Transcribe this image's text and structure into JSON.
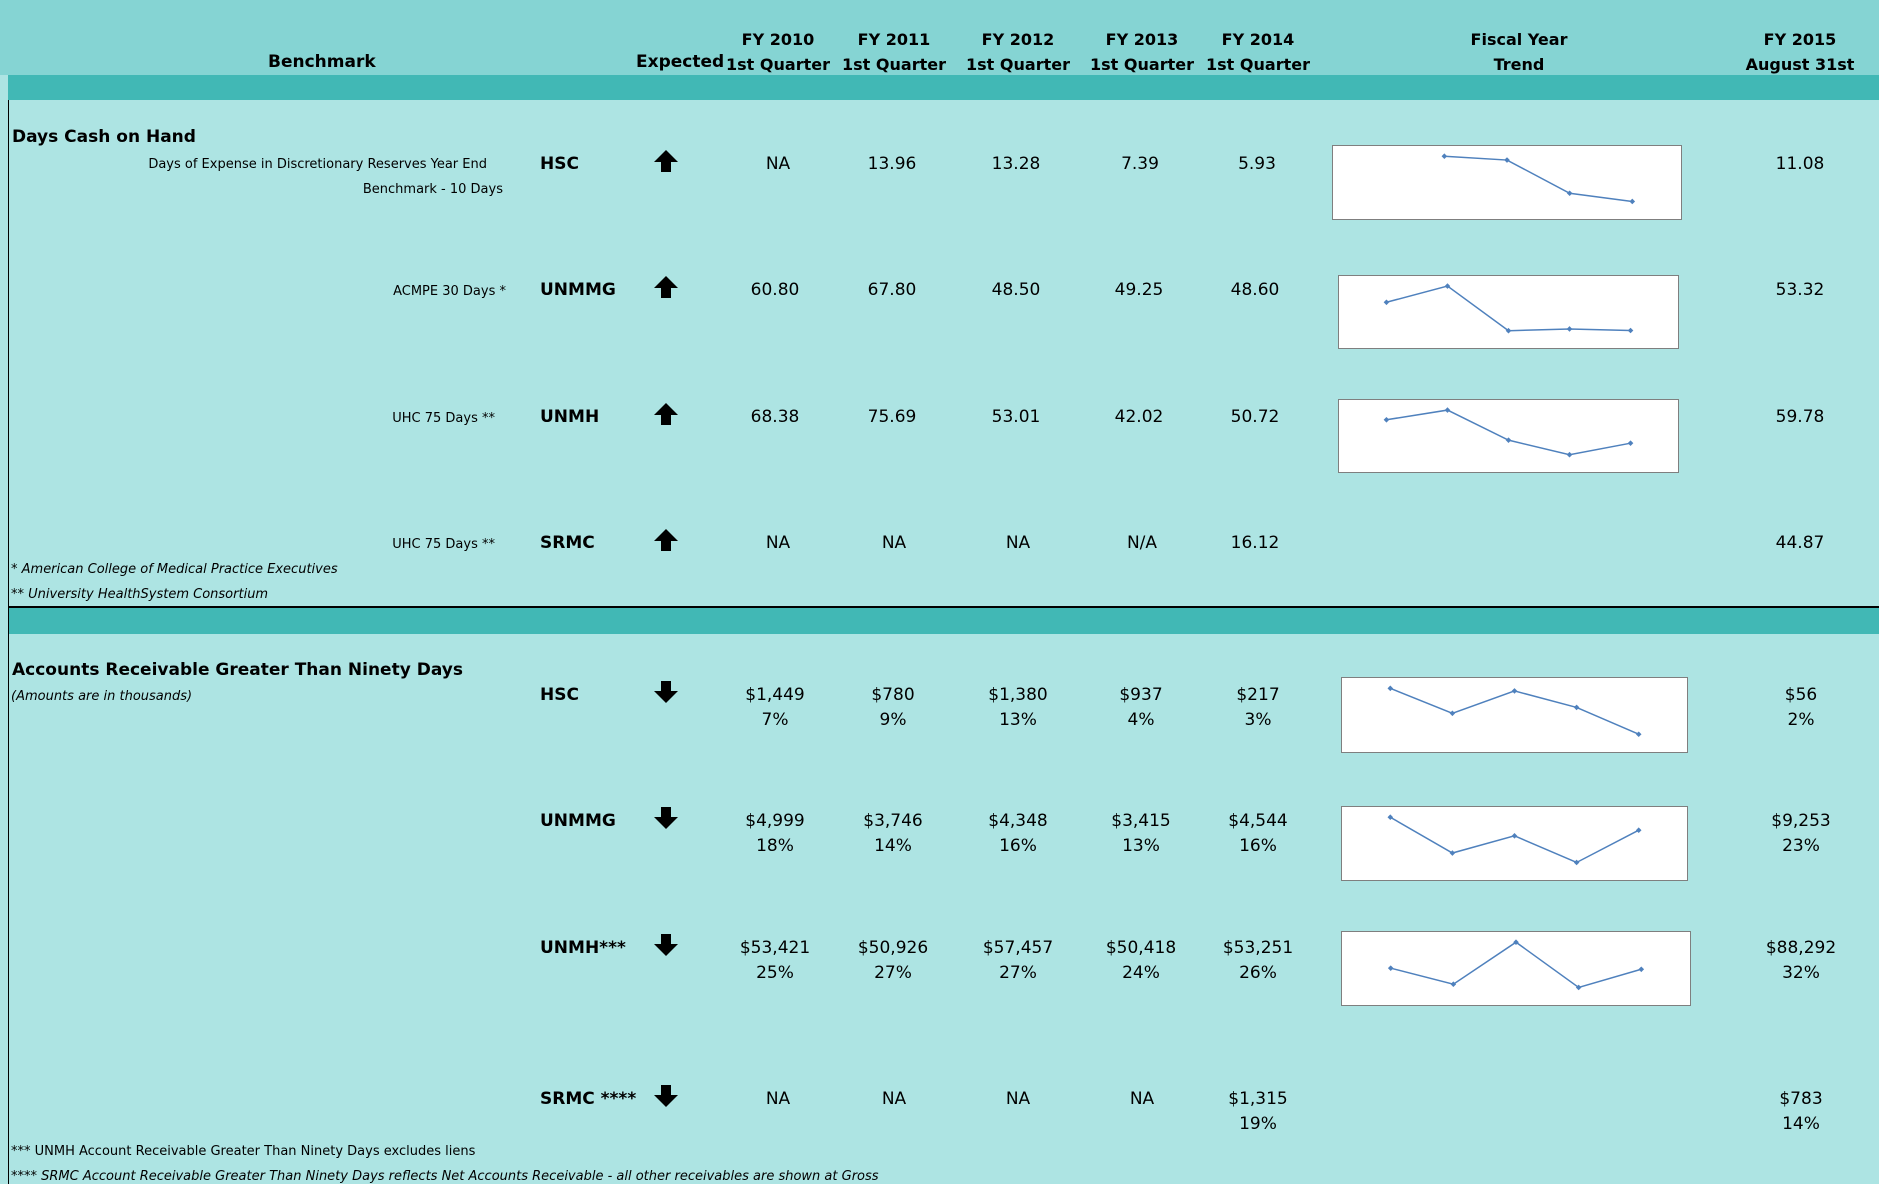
{
  "header": {
    "benchmark": "Benchmark",
    "expected": "Expected",
    "columns": [
      {
        "l1": "FY 2010",
        "l2": "1st Quarter"
      },
      {
        "l1": "FY 2011",
        "l2": "1st Quarter"
      },
      {
        "l1": "FY 2012",
        "l2": "1st Quarter"
      },
      {
        "l1": "FY 2013",
        "l2": "1st Quarter"
      },
      {
        "l1": "FY 2014",
        "l2": "1st Quarter"
      }
    ],
    "trend": {
      "l1": "Fiscal Year",
      "l2": "Trend"
    },
    "fy2015": {
      "l1": "FY 2015",
      "l2": "August 31st"
    }
  },
  "days_cash": {
    "title": "Days Cash on Hand",
    "rows": [
      {
        "label": "Days of Expense in Discretionary Reserves Year End",
        "label2": "Benchmark - 10 Days",
        "entity": "HSC",
        "expected": "up",
        "values": [
          "NA",
          "13.96",
          "13.28",
          "7.39",
          "5.93"
        ],
        "fy2015": "11.08",
        "trend": [
          null,
          13.96,
          13.28,
          7.39,
          5.93
        ]
      },
      {
        "label": "ACMPE 30 Days *",
        "entity": "UNMMG",
        "expected": "up",
        "values": [
          "60.80",
          "67.80",
          "48.50",
          "49.25",
          "48.60"
        ],
        "fy2015": "53.32",
        "trend": [
          60.8,
          67.8,
          48.5,
          49.25,
          48.6
        ]
      },
      {
        "label": "UHC 75 Days **",
        "entity": "UNMH",
        "expected": "up",
        "values": [
          "68.38",
          "75.69",
          "53.01",
          "42.02",
          "50.72"
        ],
        "fy2015": "59.78",
        "trend": [
          68.38,
          75.69,
          53.01,
          42.02,
          50.72
        ]
      },
      {
        "label": "UHC 75 Days **",
        "entity": "SRMC",
        "expected": "up",
        "values": [
          "NA",
          "NA",
          "NA",
          "N/A",
          "16.12"
        ],
        "fy2015": "44.87",
        "trend": null
      }
    ],
    "notes": [
      "* American College of Medical Practice Executives",
      "** University HealthSystem Consortium"
    ]
  },
  "ar90": {
    "title": "Accounts Receivable Greater Than Ninety Days",
    "subtitle": "(Amounts are in thousands)",
    "rows": [
      {
        "entity": "HSC",
        "expected": "down",
        "values": [
          "$1,449",
          "$780",
          "$1,380",
          "$937",
          "$217"
        ],
        "pcts": [
          "7%",
          "9%",
          "13%",
          "4%",
          "3%"
        ],
        "fy2015": "$56",
        "fy2015_pct": "2%",
        "trend": [
          1449,
          780,
          1380,
          937,
          217
        ]
      },
      {
        "entity": "UNMMG",
        "expected": "down",
        "values": [
          "$4,999",
          "$3,746",
          "$4,348",
          "$3,415",
          "$4,544"
        ],
        "pcts": [
          "18%",
          "14%",
          "16%",
          "13%",
          "16%"
        ],
        "fy2015": "$9,253",
        "fy2015_pct": "23%",
        "trend": [
          4999,
          3746,
          4348,
          3415,
          4544
        ]
      },
      {
        "entity": "UNMH***",
        "expected": "down",
        "values": [
          "$53,421",
          "$50,926",
          "$57,457",
          "$50,418",
          "$53,251"
        ],
        "pcts": [
          "25%",
          "27%",
          "27%",
          "24%",
          "26%"
        ],
        "fy2015": "$88,292",
        "fy2015_pct": "32%",
        "trend": [
          53421,
          50926,
          57457,
          50418,
          53251
        ]
      },
      {
        "entity": "SRMC ****",
        "expected": "down",
        "values": [
          "NA",
          "NA",
          "NA",
          "NA",
          "$1,315"
        ],
        "pcts": [
          "",
          "",
          "",
          "",
          "19%"
        ],
        "fy2015": "$783",
        "fy2015_pct": "14%",
        "trend": null
      }
    ],
    "notes": [
      "*** UNMH Account Receivable Greater Than Ninety Days excludes liens",
      "**** SRMC Account Receivable Greater Than Ninety Days reflects Net Accounts Receivable - all other receivables are shown at Gross"
    ]
  }
}
